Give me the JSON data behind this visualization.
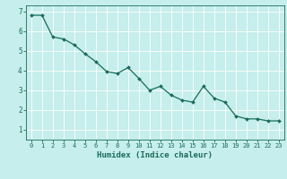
{
  "x": [
    0,
    1,
    2,
    3,
    4,
    5,
    6,
    7,
    8,
    9,
    10,
    11,
    12,
    13,
    14,
    15,
    16,
    17,
    18,
    19,
    20,
    21,
    22,
    23
  ],
  "y": [
    6.8,
    6.8,
    5.7,
    5.6,
    5.3,
    4.85,
    4.45,
    3.95,
    3.85,
    4.15,
    3.6,
    3.0,
    3.2,
    2.75,
    2.5,
    2.4,
    3.2,
    2.6,
    2.4,
    1.7,
    1.55,
    1.55,
    1.45,
    1.45
  ],
  "line_color": "#1a6b5a",
  "marker": "D",
  "marker_size": 2.0,
  "linewidth": 0.9,
  "bg_color": "#c5eeec",
  "grid_color": "#ffffff",
  "xlabel": "Humidex (Indice chaleur)",
  "xlabel_fontsize": 6.5,
  "xlim": [
    -0.5,
    23.5
  ],
  "ylim": [
    0.5,
    7.3
  ],
  "yticks": [
    1,
    2,
    3,
    4,
    5,
    6,
    7
  ],
  "xticks": [
    0,
    1,
    2,
    3,
    4,
    5,
    6,
    7,
    8,
    9,
    10,
    11,
    12,
    13,
    14,
    15,
    16,
    17,
    18,
    19,
    20,
    21,
    22,
    23
  ],
  "tick_color": "#1a6b5a",
  "tick_fontsize": 5.0,
  "ytick_fontsize": 5.5,
  "xlabel_bold": true,
  "grid_linewidth": 0.6
}
